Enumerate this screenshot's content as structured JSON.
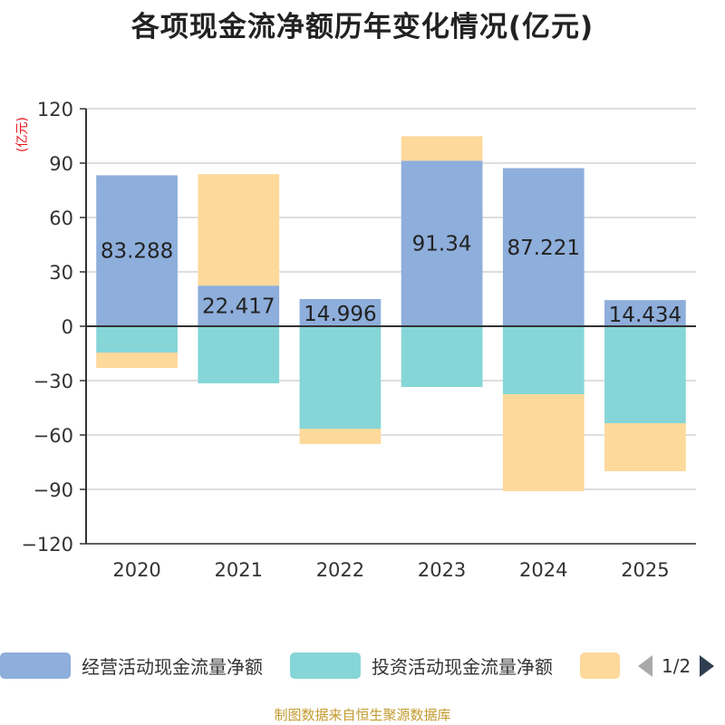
{
  "title": "各项现金流净额历年变化情况(亿元)",
  "footer": "制图数据来自恒生聚源数据库",
  "legend": {
    "items": [
      {
        "label": "经营活动现金流量净额",
        "color": "#8eaedb"
      },
      {
        "label": "投资活动现金流量净额",
        "color": "#86d6d8"
      },
      {
        "label": "",
        "color": "#fdd99b"
      }
    ],
    "pager": "1/2"
  },
  "chart_data": {
    "type": "bar",
    "stacked": true,
    "ylabel": "(亿元)",
    "ylim": [
      -120,
      120
    ],
    "yticks": [
      120,
      90,
      60,
      30,
      0,
      -30,
      -60,
      -90,
      -120
    ],
    "grid": true,
    "legend_position": "bottom",
    "categories": [
      "2020",
      "2021",
      "2022",
      "2023",
      "2024",
      "2025"
    ],
    "series": [
      {
        "name": "经营活动现金流量净额",
        "color": "#8eaedb",
        "values": [
          83.288,
          22.417,
          14.996,
          91.34,
          87.221,
          14.434
        ]
      },
      {
        "name": "投资活动现金流量净额",
        "color": "#86d6d8",
        "values": [
          -14.5,
          -31.5,
          -56.5,
          -33.5,
          -37.5,
          -53.5
        ]
      },
      {
        "color": "#fdd99b",
        "values": [
          -8.5,
          61.5,
          -8.5,
          13.5,
          -53.5,
          -26.5
        ]
      }
    ],
    "data_labels": [
      "83.288",
      "22.417",
      "14.996",
      "91.34",
      "87.221",
      "14.434"
    ]
  }
}
